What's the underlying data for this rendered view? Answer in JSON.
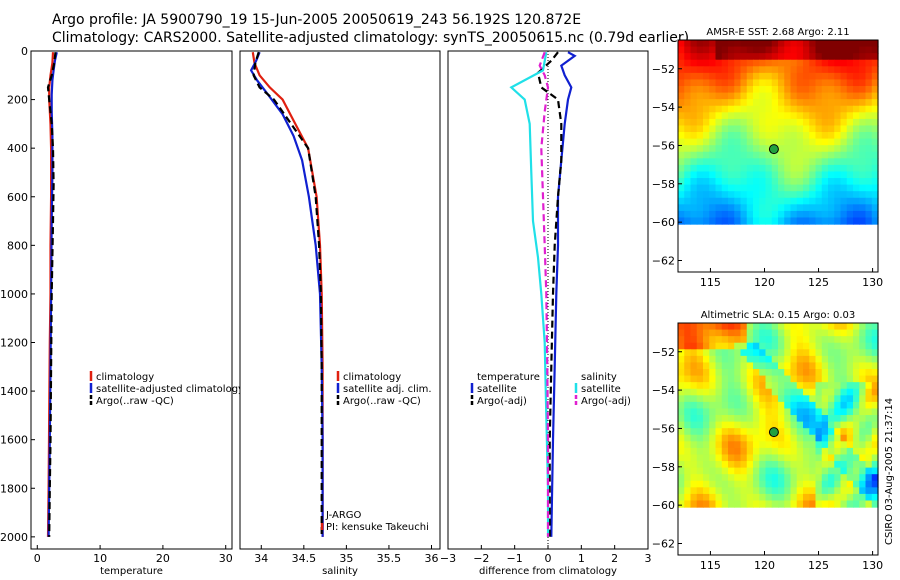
{
  "header": {
    "line1": "Argo profile: JA 5900790_19 15-Jun-2005 20050619_243 56.192S 120.872E",
    "line2": "Climatology: CARS2000. Satellite-adjusted climatology: synTS_20050615.nc (0.79d earlier)"
  },
  "stamp": "CSIRO 03-Aug-2005 21:37:14",
  "colors": {
    "red": "#e02010",
    "blue": "#1020d0",
    "black": "#000000",
    "cyan": "#20e0e8",
    "magenta": "#e020d0"
  },
  "chart_data": [
    {
      "id": "temperature",
      "type": "line",
      "xlabel": "temperature",
      "xlim": [
        -1,
        31
      ],
      "ylim": [
        0,
        2050
      ],
      "y_inverted": true,
      "xticks": [
        0,
        10,
        20,
        30
      ],
      "yticks": [
        0,
        200,
        400,
        600,
        800,
        1000,
        1200,
        1400,
        1600,
        1800,
        2000
      ],
      "legend": [
        "climatology",
        "satellite-adjusted climatology",
        "Argo(..raw -QC)"
      ],
      "series": [
        {
          "name": "climatology",
          "color": "red",
          "dash": false,
          "points": [
            [
              2.5,
              5
            ],
            [
              2.4,
              50
            ],
            [
              2.1,
              100
            ],
            [
              1.9,
              150
            ],
            [
              1.9,
              200
            ],
            [
              2.1,
              300
            ],
            [
              2.2,
              400
            ],
            [
              2.2,
              600
            ],
            [
              2.1,
              800
            ],
            [
              2.1,
              1000
            ],
            [
              2.0,
              1200
            ],
            [
              1.9,
              1500
            ],
            [
              1.8,
              1800
            ],
            [
              1.7,
              2000
            ]
          ]
        },
        {
          "name": "satellite-adjusted climatology",
          "color": "blue",
          "dash": false,
          "points": [
            [
              3.1,
              5
            ],
            [
              2.8,
              40
            ],
            [
              2.6,
              80
            ],
            [
              2.4,
              120
            ],
            [
              2.3,
              180
            ],
            [
              2.3,
              250
            ],
            [
              2.4,
              350
            ],
            [
              2.4,
              500
            ],
            [
              2.3,
              700
            ],
            [
              2.2,
              1000
            ],
            [
              2.1,
              1300
            ],
            [
              2.0,
              1600
            ],
            [
              1.9,
              1800
            ],
            [
              1.8,
              2000
            ]
          ]
        },
        {
          "name": "Argo(..raw -QC)",
          "color": "black",
          "dash": true,
          "points": [
            [
              2.9,
              5
            ],
            [
              2.7,
              50
            ],
            [
              2.3,
              100
            ],
            [
              1.7,
              150
            ],
            [
              1.9,
              200
            ],
            [
              2.3,
              300
            ],
            [
              2.5,
              400
            ],
            [
              2.6,
              550
            ],
            [
              2.5,
              700
            ],
            [
              2.3,
              1000
            ],
            [
              2.2,
              1300
            ],
            [
              2.1,
              1600
            ],
            [
              2.0,
              1800
            ],
            [
              1.9,
              2000
            ]
          ]
        }
      ]
    },
    {
      "id": "salinity",
      "type": "line",
      "xlabel": "salinity",
      "xlim": [
        33.75,
        36.1
      ],
      "ylim": [
        0,
        2050
      ],
      "y_inverted": true,
      "xticks": [
        34,
        34.5,
        35,
        35.5,
        36
      ],
      "legend": [
        "climatology",
        "satellite adj. clim.",
        "Argo(..raw -QC)"
      ],
      "notes": [
        "J-ARGO",
        "PI: kensuke Takeuchi"
      ],
      "series": [
        {
          "name": "climatology",
          "color": "red",
          "dash": false,
          "points": [
            [
              33.9,
              5
            ],
            [
              33.92,
              50
            ],
            [
              33.98,
              100
            ],
            [
              34.1,
              150
            ],
            [
              34.25,
              200
            ],
            [
              34.4,
              300
            ],
            [
              34.55,
              400
            ],
            [
              34.65,
              600
            ],
            [
              34.69,
              800
            ],
            [
              34.71,
              1000
            ],
            [
              34.72,
              1300
            ],
            [
              34.72,
              1600
            ],
            [
              34.72,
              2000
            ]
          ]
        },
        {
          "name": "satellite adj. clim.",
          "color": "blue",
          "dash": false,
          "points": [
            [
              33.98,
              5
            ],
            [
              33.94,
              40
            ],
            [
              33.88,
              80
            ],
            [
              33.95,
              120
            ],
            [
              34.08,
              180
            ],
            [
              34.25,
              260
            ],
            [
              34.38,
              350
            ],
            [
              34.48,
              450
            ],
            [
              34.56,
              600
            ],
            [
              34.64,
              800
            ],
            [
              34.69,
              1000
            ],
            [
              34.71,
              1300
            ],
            [
              34.72,
              1600
            ],
            [
              34.72,
              2000
            ]
          ]
        },
        {
          "name": "Argo(..raw -QC)",
          "color": "black",
          "dash": true,
          "points": [
            [
              33.97,
              5
            ],
            [
              33.93,
              50
            ],
            [
              33.91,
              100
            ],
            [
              33.98,
              150
            ],
            [
              34.15,
              200
            ],
            [
              34.35,
              300
            ],
            [
              34.55,
              400
            ],
            [
              34.64,
              600
            ],
            [
              34.68,
              800
            ],
            [
              34.7,
              1000
            ],
            [
              34.71,
              1300
            ],
            [
              34.71,
              1600
            ],
            [
              34.71,
              2000
            ]
          ]
        }
      ]
    },
    {
      "id": "difference",
      "type": "line",
      "xlabel": "difference from climatology",
      "xlim": [
        -3,
        3
      ],
      "ylim": [
        0,
        2050
      ],
      "y_inverted": true,
      "xticks": [
        -3,
        -2,
        -1,
        0,
        1,
        2,
        3
      ],
      "legend_left": [
        "temperature",
        "satellite",
        "Argo(-adj)"
      ],
      "legend_right": [
        "salinity",
        "satellite",
        "Argo(-adj)"
      ],
      "series": [
        {
          "name": "temperature satellite",
          "color": "blue",
          "dash": false,
          "points": [
            [
              0.6,
              5
            ],
            [
              0.8,
              20
            ],
            [
              0.4,
              60
            ],
            [
              0.5,
              100
            ],
            [
              0.7,
              150
            ],
            [
              0.6,
              200
            ],
            [
              0.5,
              300
            ],
            [
              0.4,
              450
            ],
            [
              0.3,
              600
            ],
            [
              0.3,
              800
            ],
            [
              0.25,
              1000
            ],
            [
              0.2,
              1300
            ],
            [
              0.15,
              1600
            ],
            [
              0.1,
              2000
            ]
          ]
        },
        {
          "name": "temperature Argo(-adj)",
          "color": "black",
          "dash": true,
          "points": [
            [
              0.3,
              5
            ],
            [
              0.1,
              40
            ],
            [
              -0.3,
              90
            ],
            [
              -0.2,
              150
            ],
            [
              0.3,
              200
            ],
            [
              0.4,
              300
            ],
            [
              0.4,
              450
            ],
            [
              0.3,
              600
            ],
            [
              0.2,
              800
            ],
            [
              0.15,
              1000
            ],
            [
              0.1,
              1300
            ],
            [
              0.05,
              1600
            ],
            [
              0.05,
              2000
            ]
          ]
        },
        {
          "name": "salinity satellite",
          "color": "cyan",
          "dash": false,
          "points": [
            [
              -0.05,
              5
            ],
            [
              -0.15,
              80
            ],
            [
              -1.1,
              150
            ],
            [
              -0.7,
              200
            ],
            [
              -0.55,
              300
            ],
            [
              -0.5,
              500
            ],
            [
              -0.45,
              700
            ],
            [
              -0.3,
              850
            ],
            [
              -0.2,
              1000
            ],
            [
              -0.1,
              1200
            ],
            [
              -0.05,
              1500
            ],
            [
              0.0,
              1800
            ],
            [
              0.0,
              2000
            ]
          ]
        },
        {
          "name": "salinity Argo(-adj)",
          "color": "magenta",
          "dash": true,
          "points": [
            [
              -0.1,
              5
            ],
            [
              -0.25,
              60
            ],
            [
              -0.1,
              100
            ],
            [
              0.0,
              150
            ],
            [
              -0.1,
              250
            ],
            [
              -0.2,
              400
            ],
            [
              -0.15,
              600
            ],
            [
              -0.1,
              800
            ],
            [
              -0.05,
              1000
            ],
            [
              -0.02,
              1300
            ],
            [
              0.0,
              1600
            ],
            [
              0.0,
              2000
            ]
          ]
        }
      ]
    },
    {
      "id": "sst-map",
      "type": "heatmap",
      "title": "AMSR-E SST: 2.68 Argo: 2.11",
      "xlim": [
        112,
        130.5
      ],
      "ylim": [
        -62.6,
        -50.5
      ],
      "xticks": [
        115,
        120,
        125,
        130
      ],
      "yticks": [
        -52,
        -54,
        -56,
        -58,
        -60,
        -62
      ],
      "data_ylim": [
        -60.1,
        -50.5
      ],
      "marker": {
        "lon": 120.872,
        "lat": -56.192
      }
    },
    {
      "id": "sla-map",
      "type": "heatmap",
      "title": "Altimetric SLA: 0.15 Argo: 0.03",
      "xlim": [
        112,
        130.5
      ],
      "ylim": [
        -62.6,
        -50.5
      ],
      "xticks": [
        115,
        120,
        125,
        130
      ],
      "yticks": [
        -52,
        -54,
        -56,
        -58,
        -60,
        -62
      ],
      "data_ylim": [
        -60.1,
        -50.5
      ],
      "marker": {
        "lon": 120.872,
        "lat": -56.192
      }
    }
  ]
}
